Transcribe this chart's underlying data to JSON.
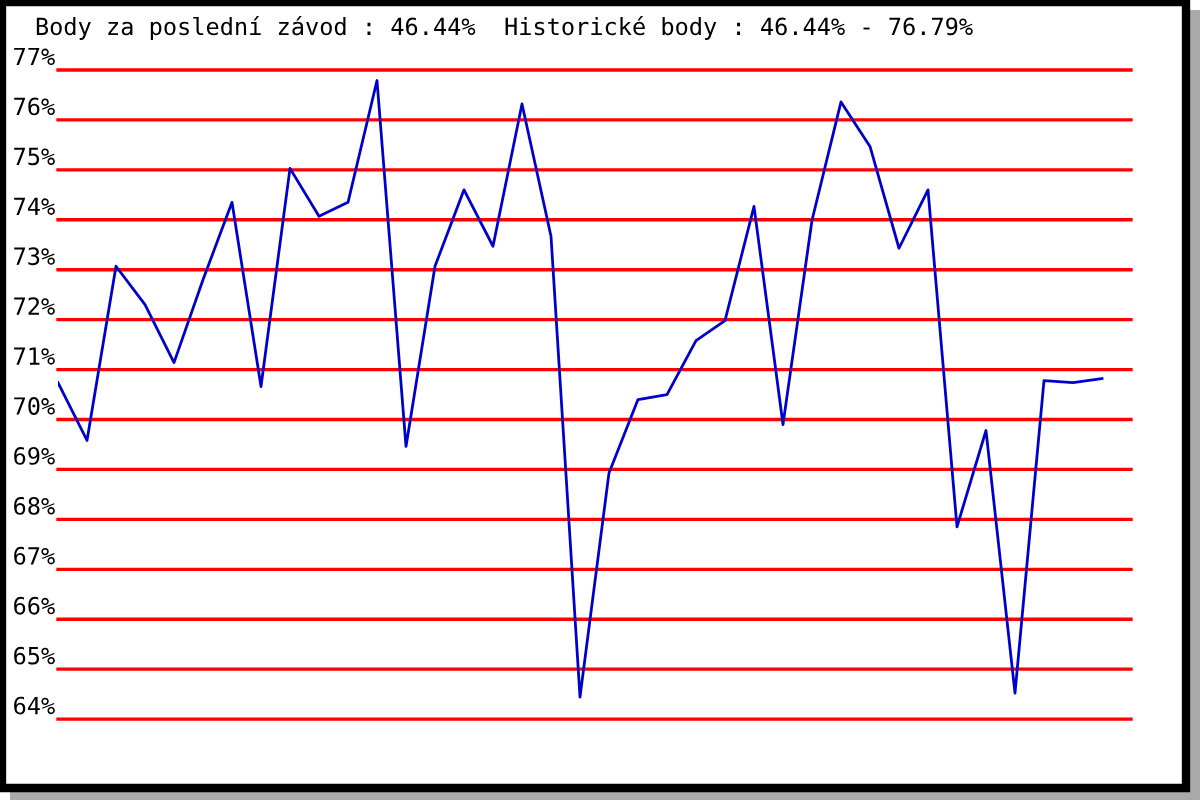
{
  "chart_data": {
    "type": "line",
    "title": "Body za poslední závod : 46.44%  Historické body : 46.44% - 76.79%",
    "categories": [
      null,
      null,
      null,
      null,
      null,
      null,
      null,
      null,
      null,
      null,
      null,
      null,
      null,
      null,
      null,
      null,
      null,
      null,
      null,
      null,
      null,
      null,
      null,
      null,
      null,
      null,
      null,
      null,
      null,
      null,
      null,
      null,
      null,
      null,
      null,
      null,
      null,
      null
    ],
    "series": [
      {
        "color": "#0000cc",
        "values": [
          70.74,
          69.58,
          73.07,
          72.3,
          71.14,
          72.8,
          74.35,
          70.66,
          75.03,
          74.07,
          74.35,
          76.79,
          69.46,
          73.07,
          74.6,
          73.47,
          76.32,
          73.67,
          64.44,
          68.93,
          70.4,
          70.5,
          71.58,
          71.98,
          74.27,
          69.9,
          73.99,
          76.36,
          75.47,
          73.43,
          74.6,
          67.85,
          69.78,
          64.52,
          70.78,
          70.74,
          70.82,
          null
        ]
      }
    ],
    "ylim": [
      62.7,
      77
    ],
    "yticks": [
      {
        "value": 64,
        "label": "64%"
      },
      {
        "value": 65,
        "label": "65%"
      },
      {
        "value": 66,
        "label": "66%"
      },
      {
        "value": 67,
        "label": "67%"
      },
      {
        "value": 68,
        "label": "68%"
      },
      {
        "value": 69,
        "label": "69%"
      },
      {
        "value": 70,
        "label": "70%"
      },
      {
        "value": 71,
        "label": "71%"
      },
      {
        "value": 72,
        "label": "72%"
      },
      {
        "value": 73,
        "label": "73%"
      },
      {
        "value": 74,
        "label": "74%"
      },
      {
        "value": 75,
        "label": "75%"
      },
      {
        "value": 76,
        "label": "76%"
      },
      {
        "value": 77,
        "label": "77%"
      }
    ],
    "grid": "y",
    "tick_labels": "y",
    "marker": "none",
    "line_style": "solid",
    "legend": false
  }
}
